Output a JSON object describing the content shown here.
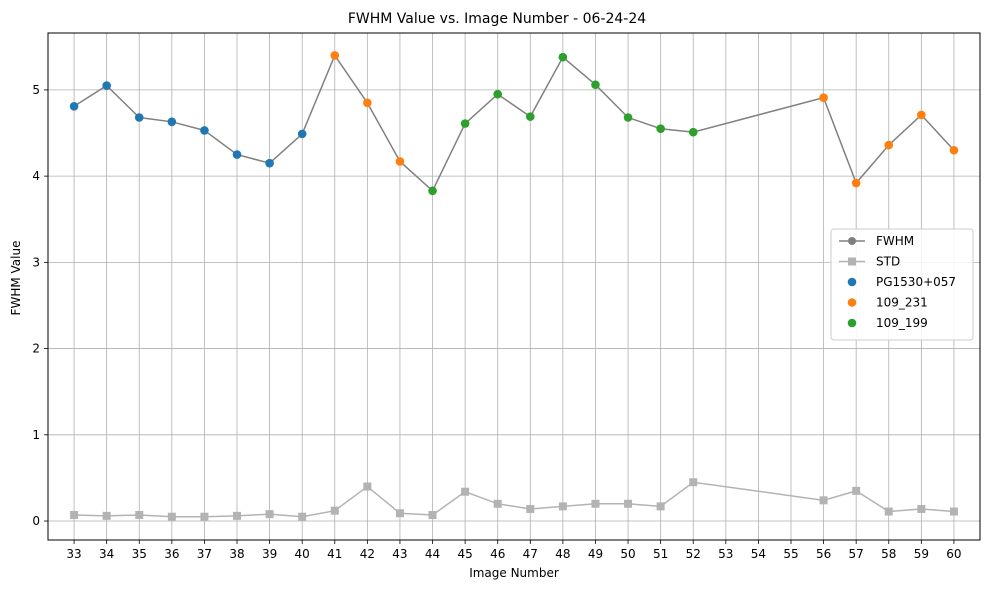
{
  "chart_data": {
    "type": "line",
    "title": "FWHM Value vs. Image Number - 06-24-24",
    "xlabel": "Image Number",
    "ylabel": "FWHM Value",
    "x_ticks": [
      33,
      34,
      35,
      36,
      37,
      38,
      39,
      40,
      41,
      42,
      43,
      44,
      45,
      46,
      47,
      48,
      49,
      50,
      51,
      52,
      53,
      54,
      55,
      56,
      57,
      58,
      59,
      60
    ],
    "xlim": [
      32.2,
      60.8
    ],
    "ylim": [
      -0.22,
      5.66
    ],
    "y_ticks": [
      0,
      1,
      2,
      3,
      4,
      5
    ],
    "grid": true,
    "legend_position": "center-right",
    "x": [
      33,
      34,
      35,
      36,
      37,
      38,
      39,
      40,
      41,
      42,
      43,
      44,
      45,
      46,
      47,
      48,
      49,
      50,
      51,
      52,
      56,
      57,
      58,
      59,
      60
    ],
    "series": [
      {
        "name": "FWHM",
        "kind": "line",
        "marker": "circle",
        "color": "#808080",
        "values": [
          4.81,
          5.05,
          4.68,
          4.63,
          4.53,
          4.25,
          4.15,
          4.49,
          5.4,
          4.85,
          4.17,
          3.83,
          4.61,
          4.95,
          4.69,
          5.38,
          5.06,
          4.68,
          4.55,
          4.51,
          4.91,
          3.92,
          4.36,
          4.71,
          4.3
        ]
      },
      {
        "name": "STD",
        "kind": "line",
        "marker": "square",
        "color": "#b3b3b3",
        "values": [
          0.07,
          0.06,
          0.07,
          0.05,
          0.05,
          0.06,
          0.08,
          0.05,
          0.12,
          0.4,
          0.09,
          0.07,
          0.34,
          0.2,
          0.14,
          0.17,
          0.2,
          0.2,
          0.17,
          0.45,
          0.24,
          0.35,
          0.11,
          0.14,
          0.11
        ]
      },
      {
        "name": "PG1530+057",
        "kind": "scatter",
        "color": "#1f77b4",
        "x": [
          33,
          34,
          35,
          36,
          37,
          38,
          39,
          40
        ],
        "values": [
          4.81,
          5.05,
          4.68,
          4.63,
          4.53,
          4.25,
          4.15,
          4.49
        ]
      },
      {
        "name": "109_231",
        "kind": "scatter",
        "color": "#ff7f0e",
        "x": [
          41,
          42,
          43,
          56,
          57,
          58,
          59,
          60
        ],
        "values": [
          5.4,
          4.85,
          4.17,
          4.91,
          3.92,
          4.36,
          4.71,
          4.3
        ]
      },
      {
        "name": "109_199",
        "kind": "scatter",
        "color": "#2ca02c",
        "x": [
          44,
          45,
          46,
          47,
          48,
          49,
          50,
          51,
          52
        ],
        "values": [
          3.83,
          4.61,
          4.95,
          4.69,
          5.38,
          5.06,
          4.68,
          4.55,
          4.51
        ]
      }
    ]
  }
}
